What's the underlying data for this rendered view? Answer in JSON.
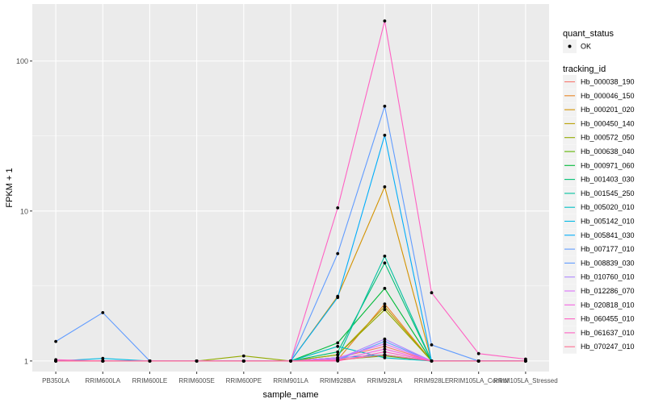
{
  "chart_data": {
    "type": "line",
    "xlabel": "sample_name",
    "ylabel": "FPKM + 1",
    "y_scale": "log10",
    "ylim": [
      0.85,
      240
    ],
    "y_ticks": [
      1,
      10,
      100
    ],
    "y_tick_labels": [
      "1",
      "10",
      "100"
    ],
    "categories": [
      "PB350LA",
      "RRIM600LA",
      "RRIM600LE",
      "RRIM600SE",
      "RRIM600PE",
      "RRIM901LA",
      "RRIM928BA",
      "RRIM928LA",
      "RRIM928LE",
      "RRIM105LA_Control",
      "RRIM105LA_Stressed"
    ],
    "background": "#ebebeb",
    "grid": true,
    "legend_position": "right",
    "legend_shape": {
      "title": "quant_status",
      "entries": [
        "OK"
      ]
    },
    "legend_color": {
      "title": "tracking_id"
    },
    "point_color": "#000000",
    "series": [
      {
        "name": "Hb_000038_190",
        "color": "#F8766D",
        "values": [
          1,
          1,
          1,
          1,
          1,
          1,
          1.05,
          1.25,
          1,
          1,
          1
        ]
      },
      {
        "name": "Hb_000046_150",
        "color": "#E88526",
        "values": [
          1,
          1,
          1,
          1,
          1,
          1,
          1.02,
          2.4,
          1,
          1,
          1
        ]
      },
      {
        "name": "Hb_000201_020",
        "color": "#D39200",
        "values": [
          1,
          1,
          1,
          1,
          1,
          1,
          2.7,
          14.5,
          1,
          1,
          1
        ]
      },
      {
        "name": "Hb_000450_140",
        "color": "#B79F00",
        "values": [
          1,
          1,
          1,
          1,
          1,
          1,
          1.1,
          2.3,
          1,
          1,
          1
        ]
      },
      {
        "name": "Hb_000572_050",
        "color": "#93AA00",
        "values": [
          1,
          1,
          1,
          1,
          1.08,
          1,
          1.1,
          2.2,
          1,
          1,
          1
        ]
      },
      {
        "name": "Hb_000638_040",
        "color": "#5EB300",
        "values": [
          1,
          1,
          1,
          1,
          1,
          1,
          1.02,
          1.08,
          1,
          1,
          1
        ]
      },
      {
        "name": "Hb_000971_060",
        "color": "#00BA38",
        "values": [
          1,
          1,
          1,
          1,
          1,
          1,
          1.32,
          3.05,
          1,
          1,
          1
        ]
      },
      {
        "name": "Hb_001403_030",
        "color": "#00BF74",
        "values": [
          1,
          1,
          1,
          1,
          1,
          1,
          1.15,
          4.5,
          1,
          1,
          1
        ]
      },
      {
        "name": "Hb_001545_250",
        "color": "#00C19F",
        "values": [
          1,
          1,
          1,
          1,
          1,
          1,
          1.05,
          5.0,
          1,
          1,
          1
        ]
      },
      {
        "name": "Hb_005020_010",
        "color": "#00BFC4",
        "values": [
          1,
          1,
          1,
          1,
          1,
          1,
          1.25,
          1.05,
          1,
          1,
          1
        ]
      },
      {
        "name": "Hb_005142_010",
        "color": "#00B9E3",
        "values": [
          1,
          1.04,
          1,
          1,
          1,
          1,
          1.05,
          1.1,
          1,
          1,
          1
        ]
      },
      {
        "name": "Hb_005841_030",
        "color": "#00ADFA",
        "values": [
          1,
          1,
          1,
          1,
          1,
          1,
          2.65,
          32,
          1,
          1,
          1
        ]
      },
      {
        "name": "Hb_007177_010",
        "color": "#619CFF",
        "values": [
          1.35,
          2.1,
          1,
          1,
          1,
          1,
          5.2,
          50,
          1.28,
          1,
          1
        ]
      },
      {
        "name": "Hb_008839_030",
        "color": "#619CFF",
        "values": [
          1,
          1,
          1,
          1,
          1,
          1,
          1.02,
          1.35,
          1,
          1,
          1
        ]
      },
      {
        "name": "Hb_010760_010",
        "color": "#AE87FF",
        "values": [
          1,
          1,
          1,
          1,
          1,
          1,
          1.03,
          1.4,
          1,
          1,
          1
        ]
      },
      {
        "name": "Hb_012286_070",
        "color": "#DB72FB",
        "values": [
          1,
          1,
          1,
          1,
          1,
          1,
          1.05,
          1.3,
          1,
          1,
          1
        ]
      },
      {
        "name": "Hb_020818_010",
        "color": "#F564E3",
        "values": [
          1,
          1,
          1,
          1,
          1,
          1,
          1.02,
          1.2,
          1,
          1,
          1
        ]
      },
      {
        "name": "Hb_060455_010",
        "color": "#FF61C3",
        "values": [
          1,
          1,
          1,
          1,
          1,
          1,
          1.0,
          1.15,
          1,
          1,
          1
        ]
      },
      {
        "name": "Hb_061637_010",
        "color": "#FF61C3",
        "values": [
          1.02,
          1,
          1,
          1,
          1,
          1,
          10.5,
          185,
          2.85,
          1.12,
          1.03
        ]
      },
      {
        "name": "Hb_070247_010",
        "color": "#FF6C91",
        "values": [
          1,
          1,
          1,
          1,
          1,
          1,
          1.01,
          1.1,
          1,
          1,
          1
        ]
      }
    ]
  }
}
